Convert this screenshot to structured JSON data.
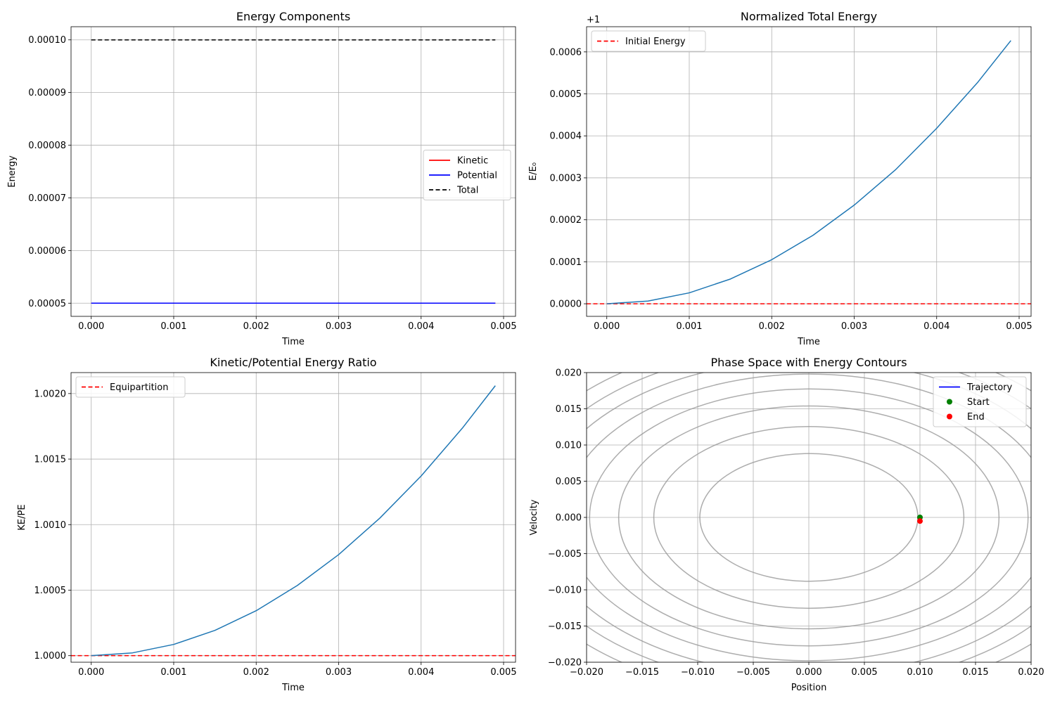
{
  "chart_data": [
    {
      "type": "line",
      "title": "Energy Components",
      "xlabel": "Time",
      "ylabel": "Energy",
      "xlim": [
        -0.000245,
        0.005145
      ],
      "ylim": [
        4.75e-05,
        0.0001025
      ],
      "xticks": [
        0.0,
        0.001,
        0.002,
        0.003,
        0.004,
        0.005
      ],
      "xtick_labels": [
        "0.000",
        "0.001",
        "0.002",
        "0.003",
        "0.004",
        "0.005"
      ],
      "yticks": [
        5e-05,
        6e-05,
        7e-05,
        8e-05,
        9e-05,
        0.0001
      ],
      "ytick_labels": [
        "0.00005",
        "0.00006",
        "0.00007",
        "0.00008",
        "0.00009",
        "0.00010"
      ],
      "grid": true,
      "legend": {
        "placement": "center-right",
        "entries": [
          "Kinetic",
          "Potential",
          "Total"
        ]
      },
      "series": [
        {
          "name": "Kinetic",
          "color": "#ff0000",
          "style": "solid",
          "x": [
            0.0,
            0.001,
            0.002,
            0.003,
            0.004,
            0.0049
          ],
          "y": [
            5e-05,
            5e-05,
            5e-05,
            5e-05,
            5e-05,
            5e-05
          ]
        },
        {
          "name": "Potential",
          "color": "#0000ff",
          "style": "solid",
          "x": [
            0.0,
            0.001,
            0.002,
            0.003,
            0.004,
            0.0049
          ],
          "y": [
            5e-05,
            5e-05,
            5e-05,
            5e-05,
            5e-05,
            5e-05
          ]
        },
        {
          "name": "Total",
          "color": "#000000",
          "style": "dashed",
          "x": [
            0.0,
            0.001,
            0.002,
            0.003,
            0.004,
            0.0049
          ],
          "y": [
            0.0001,
            0.0001,
            0.0001,
            0.0001,
            0.0001,
            0.0001
          ]
        }
      ]
    },
    {
      "type": "line",
      "title": "Normalized Total Energy",
      "xlabel": "Time",
      "ylabel": "E/E₀",
      "offset_label": "+1",
      "xlim": [
        -0.000245,
        0.005145
      ],
      "ylim": [
        -3e-05,
        0.00066
      ],
      "xticks": [
        0.0,
        0.001,
        0.002,
        0.003,
        0.004,
        0.005
      ],
      "xtick_labels": [
        "0.000",
        "0.001",
        "0.002",
        "0.003",
        "0.004",
        "0.005"
      ],
      "yticks": [
        0.0,
        0.0001,
        0.0002,
        0.0003,
        0.0004,
        0.0005,
        0.0006
      ],
      "ytick_labels": [
        "0.0000",
        "0.0001",
        "0.0002",
        "0.0003",
        "0.0004",
        "0.0005",
        "0.0006"
      ],
      "grid": true,
      "legend": {
        "placement": "upper-left",
        "entries": [
          "Initial Energy"
        ]
      },
      "hlines": [
        {
          "name": "Initial Energy",
          "y": 0.0,
          "color": "#ff0000",
          "style": "dashed"
        }
      ],
      "series": [
        {
          "name": "",
          "color": "#1f77b4",
          "style": "solid",
          "x": [
            0.0,
            0.0005,
            0.001,
            0.0015,
            0.002,
            0.0025,
            0.003,
            0.0035,
            0.004,
            0.0045,
            0.0049
          ],
          "y": [
            0.0,
            6.5e-06,
            2.6e-05,
            5.9e-05,
            0.000105,
            0.000163,
            0.000235,
            0.000319,
            0.000418,
            0.000528,
            0.000627
          ]
        }
      ]
    },
    {
      "type": "line",
      "title": "Kinetic/Potential Energy Ratio",
      "xlabel": "Time",
      "ylabel": "KE/PE",
      "xlim": [
        -0.000245,
        0.005145
      ],
      "ylim": [
        0.99995,
        1.00216
      ],
      "xticks": [
        0.0,
        0.001,
        0.002,
        0.003,
        0.004,
        0.005
      ],
      "xtick_labels": [
        "0.000",
        "0.001",
        "0.002",
        "0.003",
        "0.004",
        "0.005"
      ],
      "yticks": [
        1.0,
        1.0005,
        1.001,
        1.0015,
        1.002
      ],
      "ytick_labels": [
        "1.0000",
        "1.0005",
        "1.0010",
        "1.0015",
        "1.0020"
      ],
      "grid": true,
      "legend": {
        "placement": "upper-left",
        "entries": [
          "Equipartition"
        ]
      },
      "hlines": [
        {
          "name": "Equipartition",
          "y": 1.0,
          "color": "#ff0000",
          "style": "dashed"
        }
      ],
      "series": [
        {
          "name": "",
          "color": "#1f77b4",
          "style": "solid",
          "x": [
            0.0,
            0.0005,
            0.001,
            0.0015,
            0.002,
            0.0025,
            0.003,
            0.0035,
            0.004,
            0.0045,
            0.0049
          ],
          "y": [
            1.0,
            1.0000214,
            1.0000857,
            1.000193,
            1.000343,
            1.000536,
            1.000771,
            1.00105,
            1.001371,
            1.001736,
            1.00206
          ]
        }
      ]
    },
    {
      "type": "scatter",
      "title": "Phase Space with Energy Contours",
      "xlabel": "Position",
      "ylabel": "Velocity",
      "xlim": [
        -0.02,
        0.02
      ],
      "ylim": [
        -0.02,
        0.02
      ],
      "xticks": [
        -0.02,
        -0.015,
        -0.01,
        -0.005,
        0.0,
        0.005,
        0.01,
        0.015,
        0.02
      ],
      "xtick_labels": [
        "−0.020",
        "−0.015",
        "−0.010",
        "−0.005",
        "0.000",
        "0.005",
        "0.010",
        "0.015",
        "0.020"
      ],
      "yticks": [
        -0.02,
        -0.015,
        -0.01,
        -0.005,
        0.0,
        0.005,
        0.01,
        0.015,
        0.02
      ],
      "ytick_labels": [
        "−0.020",
        "−0.015",
        "−0.010",
        "−0.005",
        "0.000",
        "0.005",
        "0.010",
        "0.015",
        "0.020"
      ],
      "grid": true,
      "legend": {
        "placement": "upper-right",
        "entries": [
          "Trajectory",
          "Start",
          "End"
        ]
      },
      "contours": {
        "color": "#999999",
        "semi_axes": [
          {
            "a": 0.009,
            "b": 0.009
          },
          {
            "a": 0.0128,
            "b": 0.0128
          },
          {
            "a": 0.0157,
            "b": 0.0157
          },
          {
            "a": 0.0181,
            "b": 0.0181
          },
          {
            "a": 0.0202,
            "b": 0.0202
          },
          {
            "a": 0.0222,
            "b": 0.0222
          },
          {
            "a": 0.0239,
            "b": 0.0239
          },
          {
            "a": 0.0256,
            "b": 0.0256
          }
        ]
      },
      "series": [
        {
          "name": "Trajectory",
          "type": "line",
          "color": "#0000ff",
          "x": [
            0.01,
            0.01
          ],
          "y": [
            0.0,
            -0.0005
          ]
        },
        {
          "name": "Start",
          "type": "point",
          "color": "#008000",
          "x": [
            0.01
          ],
          "y": [
            0.0
          ]
        },
        {
          "name": "End",
          "type": "point",
          "color": "#ff0000",
          "x": [
            0.01
          ],
          "y": [
            -0.0005
          ]
        }
      ]
    }
  ]
}
